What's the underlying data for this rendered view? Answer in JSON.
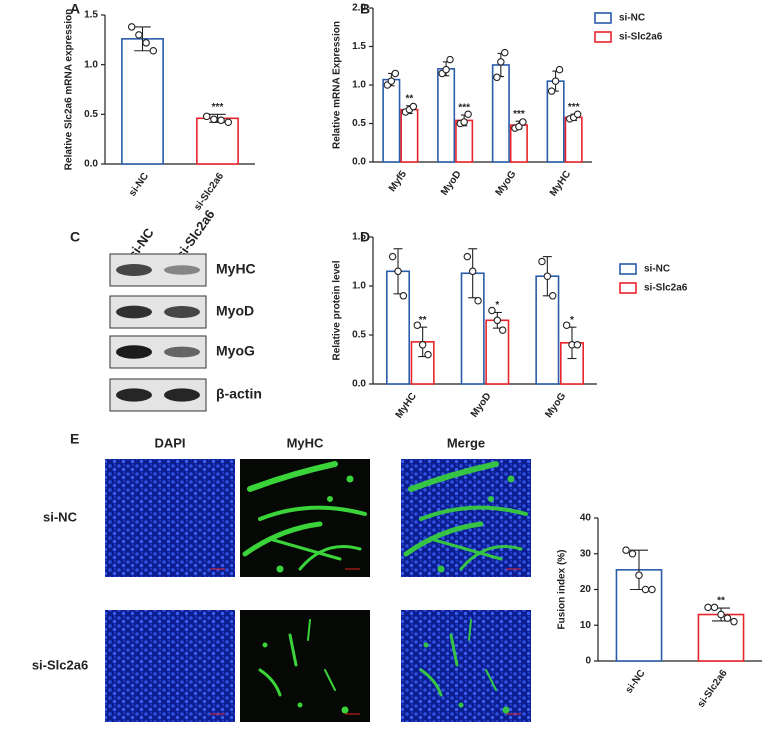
{
  "panel_labels": [
    "A",
    "B",
    "C",
    "D",
    "E"
  ],
  "chart_data": [
    {
      "type": "bar",
      "ylabel": "Relative Slc2a6 mRNA expression",
      "categories": [
        "si-NC",
        "si-Slc2a6"
      ],
      "colors": [
        "#2a5caa",
        "#e8242a"
      ],
      "values": [
        1.26,
        0.46
      ],
      "errors": [
        0.12,
        0.04
      ],
      "points": [
        [
          1.38,
          1.3,
          1.22,
          1.14
        ],
        [
          0.48,
          0.45,
          0.44,
          0.42
        ]
      ],
      "annotations": [
        null,
        "***"
      ],
      "ylim": [
        0,
        1.5
      ],
      "yticks": [
        {
          "value": 0,
          "label": "0.0"
        },
        0.5,
        {
          "value": 1,
          "label": "1.0"
        },
        1.5
      ]
    },
    {
      "type": "bar",
      "ylabel": "Relative mRNA Expression",
      "categories": [
        "Myf5",
        "MyoD",
        "MyoG",
        "MyHC"
      ],
      "series": [
        {
          "name": "si-NC",
          "color": "#2a5caa",
          "values": [
            1.07,
            1.21,
            1.26,
            1.05
          ],
          "errors": [
            0.08,
            0.09,
            0.15,
            0.13
          ],
          "points": [
            [
              1.0,
              1.05,
              1.15
            ],
            [
              1.15,
              1.2,
              1.33
            ],
            [
              1.1,
              1.3,
              1.42
            ],
            [
              0.92,
              1.05,
              1.2
            ]
          ]
        },
        {
          "name": "si-Slc2a6",
          "color": "#e8242a",
          "values": [
            0.68,
            0.54,
            0.48,
            0.58
          ],
          "errors": [
            0.05,
            0.07,
            0.05,
            0.04
          ],
          "points": [
            [
              0.65,
              0.68,
              0.72
            ],
            [
              0.5,
              0.52,
              0.62
            ],
            [
              0.44,
              0.46,
              0.52
            ],
            [
              0.56,
              0.58,
              0.62
            ]
          ],
          "annotations": [
            "**",
            "***",
            "***",
            "***"
          ]
        }
      ],
      "ylim": [
        0,
        2
      ],
      "yticks": [
        {
          "value": 0,
          "label": "0.0"
        },
        0.5,
        {
          "value": 1,
          "label": "1.0"
        },
        1.5,
        {
          "value": 2,
          "label": "2.0"
        }
      ]
    },
    {
      "type": "bar",
      "ylabel": "Relative protein level",
      "categories": [
        "MyHC",
        "MyoD",
        "MyoG"
      ],
      "series": [
        {
          "name": "si-NC",
          "color": "#2a5caa",
          "values": [
            1.15,
            1.13,
            1.1
          ],
          "errors": [
            0.23,
            0.25,
            0.2
          ],
          "points": [
            [
              1.3,
              1.15,
              0.9
            ],
            [
              1.3,
              1.15,
              0.85
            ],
            [
              1.25,
              1.1,
              0.9
            ]
          ]
        },
        {
          "name": "si-Slc2a6",
          "color": "#e8242a",
          "values": [
            0.43,
            0.65,
            0.42
          ],
          "errors": [
            0.15,
            0.08,
            0.16
          ],
          "points": [
            [
              0.6,
              0.4,
              0.3
            ],
            [
              0.75,
              0.65,
              0.55
            ],
            [
              0.6,
              0.4,
              0.4
            ]
          ],
          "annotations": [
            "**",
            "*",
            "*"
          ]
        }
      ],
      "ylim": [
        0,
        1.5
      ],
      "yticks": [
        {
          "value": 0,
          "label": "0.0"
        },
        0.5,
        {
          "value": 1,
          "label": "1.0"
        },
        1.5
      ]
    },
    {
      "type": "bar",
      "ylabel": "Fusion index (%)",
      "categories": [
        "si-NC",
        "si-Slc2a6"
      ],
      "colors": [
        "#2a5caa",
        "#e8242a"
      ],
      "values": [
        25.5,
        13
      ],
      "errors": [
        5.5,
        1.8
      ],
      "points": [
        [
          31,
          30,
          24,
          20,
          20
        ],
        [
          15,
          15,
          13,
          12,
          11
        ]
      ],
      "annotations": [
        null,
        "**"
      ],
      "ylim": [
        0,
        40
      ],
      "yticks": [
        0,
        10,
        20,
        30,
        40
      ]
    }
  ],
  "blot": {
    "lanes": [
      "si-NC",
      "si-Slc2a6"
    ],
    "proteins": [
      "MyHC",
      "MyoD",
      "MyoG",
      "β-actin"
    ]
  },
  "images": {
    "channels": [
      "DAPI",
      "MyHC",
      "Merge"
    ],
    "groups": [
      "si-NC",
      "si-Slc2a6"
    ]
  }
}
